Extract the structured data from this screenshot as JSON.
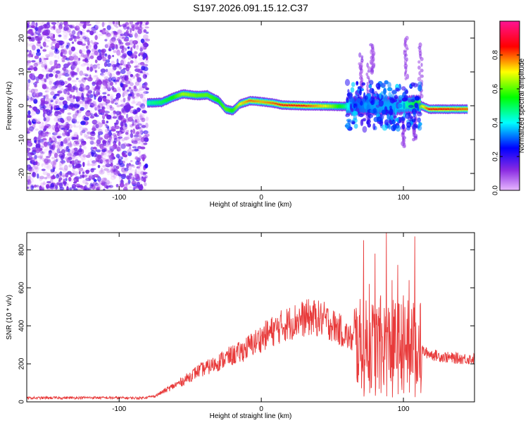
{
  "title": "S197.2026.091.15.12.C37",
  "chart_data": [
    {
      "type": "heatmap",
      "name": "spectrogram",
      "xlabel": "Height of straight line (km)",
      "ylabel": "Frequency (Hz)",
      "xlim": [
        -165,
        150
      ],
      "ylim": [
        -25,
        25
      ],
      "xticks": [
        -100,
        0,
        100
      ],
      "yticks": [
        -20,
        -10,
        0,
        10,
        20
      ],
      "colorbar": {
        "label": "Normalized spectral amplitude",
        "range": [
          0.0,
          1.0
        ],
        "ticks": [
          0.0,
          0.2,
          0.4,
          0.6,
          0.8
        ]
      },
      "ridge": [
        {
          "x": -80,
          "y": 0.8,
          "a": 0.45
        },
        {
          "x": -70,
          "y": 1.0,
          "a": 0.5
        },
        {
          "x": -62,
          "y": 2.5,
          "a": 0.55
        },
        {
          "x": -55,
          "y": 3.5,
          "a": 0.65
        },
        {
          "x": -45,
          "y": 3.0,
          "a": 0.6
        },
        {
          "x": -38,
          "y": 3.2,
          "a": 0.6
        },
        {
          "x": -30,
          "y": 1.5,
          "a": 0.55
        },
        {
          "x": -25,
          "y": -1.0,
          "a": 0.6
        },
        {
          "x": -20,
          "y": -1.5,
          "a": 0.55
        },
        {
          "x": -15,
          "y": 0.5,
          "a": 0.7
        },
        {
          "x": -8,
          "y": 1.5,
          "a": 0.8
        },
        {
          "x": 0,
          "y": 1.2,
          "a": 0.75
        },
        {
          "x": 8,
          "y": 0.8,
          "a": 0.8
        },
        {
          "x": 15,
          "y": 0.2,
          "a": 0.85
        },
        {
          "x": 30,
          "y": 0.0,
          "a": 0.85
        },
        {
          "x": 45,
          "y": -0.1,
          "a": 0.7
        },
        {
          "x": 58,
          "y": -0.2,
          "a": 0.5
        },
        {
          "x": 65,
          "y": 0.0,
          "a": 0.3
        },
        {
          "x": 80,
          "y": 0.0,
          "a": 0.35
        },
        {
          "x": 95,
          "y": 0.0,
          "a": 0.35
        },
        {
          "x": 110,
          "y": 0.5,
          "a": 0.55
        },
        {
          "x": 118,
          "y": -1.0,
          "a": 0.85
        },
        {
          "x": 130,
          "y": -1.0,
          "a": 0.85
        },
        {
          "x": 145,
          "y": -1.0,
          "a": 0.8
        }
      ]
    },
    {
      "type": "line",
      "name": "snr",
      "xlabel": "Height of straight line (km)",
      "ylabel": "SNR (10 * v/v)",
      "xlim": [
        -165,
        150
      ],
      "ylim": [
        0,
        890
      ],
      "xticks": [
        -100,
        0,
        100
      ],
      "yticks": [
        0,
        200,
        400,
        600,
        800
      ],
      "color": "#e83a3a",
      "envelope_x": [
        -165,
        -120,
        -85,
        -75,
        -65,
        -55,
        -45,
        -35,
        -25,
        -15,
        -5,
        5,
        15,
        25,
        35,
        45,
        55,
        65,
        70,
        110,
        115,
        125,
        135,
        150
      ],
      "envelope_y": [
        20,
        22,
        20,
        30,
        70,
        110,
        160,
        190,
        230,
        260,
        310,
        360,
        400,
        430,
        445,
        430,
        380,
        320,
        300,
        300,
        260,
        240,
        230,
        225
      ],
      "spikes": [
        {
          "x": 72,
          "y": 850
        },
        {
          "x": 76,
          "y": 620
        },
        {
          "x": 80,
          "y": 780
        },
        {
          "x": 84,
          "y": 560
        },
        {
          "x": 88,
          "y": 890
        },
        {
          "x": 92,
          "y": 640
        },
        {
          "x": 96,
          "y": 720
        },
        {
          "x": 100,
          "y": 560
        },
        {
          "x": 104,
          "y": 640
        },
        {
          "x": 108,
          "y": 870
        },
        {
          "x": 112,
          "y": 520
        }
      ]
    }
  ]
}
